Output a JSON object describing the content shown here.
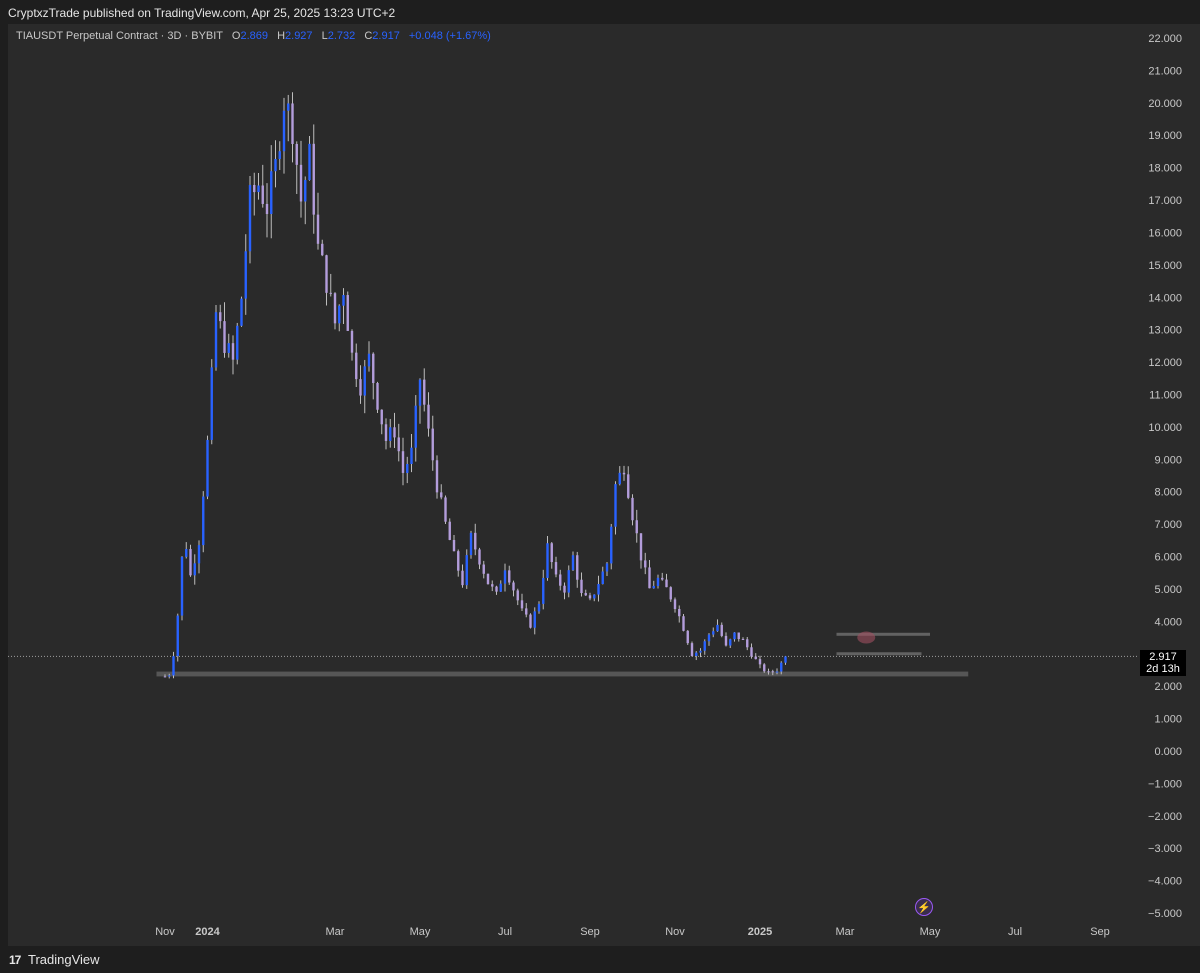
{
  "header": {
    "published_text": "CryptxzTrade published on TradingView.com, Apr 25, 2025 13:23 UTC+2"
  },
  "legend": {
    "symbol": "TIAUSDT Perpetual Contract · 3D · BYBIT",
    "open_label": "O",
    "open": "2.869",
    "high_label": "H",
    "high": "2.927",
    "low_label": "L",
    "low": "2.732",
    "close_label": "C",
    "close": "2.917",
    "change": "+0.048 (+1.67%)"
  },
  "price_tag": {
    "price": "2.917",
    "countdown": "2d 13h"
  },
  "footer": {
    "logo_mark": "17",
    "brand": "TradingView"
  },
  "colors": {
    "up": "#2962ff",
    "down": "#b39ddb",
    "wick": "#bdbdbd",
    "zone": "#7a7a7a",
    "axis_text": "#c8c8c8"
  },
  "chart_data": {
    "type": "candlestick",
    "title": "",
    "xlabel": "",
    "ylabel": "",
    "ylim": [
      -5,
      22
    ],
    "y_ticks": [
      "22.000",
      "21.000",
      "20.000",
      "19.000",
      "18.000",
      "17.000",
      "16.000",
      "15.000",
      "14.000",
      "13.000",
      "12.000",
      "11.000",
      "10.000",
      "9.000",
      "8.000",
      "7.000",
      "6.000",
      "5.000",
      "4.000",
      "3.000",
      "2.000",
      "1.000",
      "0.000",
      "−1.000",
      "−2.000",
      "−3.000",
      "−4.000",
      "−5.000"
    ],
    "x_ticks": [
      {
        "label": "Nov",
        "month": 0,
        "bold": false
      },
      {
        "label": "2024",
        "month": 1,
        "bold": true
      },
      {
        "label": "Mar",
        "month": 4,
        "bold": false
      },
      {
        "label": "May",
        "month": 6,
        "bold": false
      },
      {
        "label": "Jul",
        "month": 8,
        "bold": false
      },
      {
        "label": "Sep",
        "month": 10,
        "bold": false
      },
      {
        "label": "Nov",
        "month": 12,
        "bold": false
      },
      {
        "label": "2025",
        "month": 14,
        "bold": true
      },
      {
        "label": "Mar",
        "month": 16,
        "bold": false
      },
      {
        "label": "May",
        "month": 18,
        "bold": false
      },
      {
        "label": "Jul",
        "month": 20,
        "bold": false
      },
      {
        "label": "Sep",
        "month": 22,
        "bold": false
      }
    ],
    "last_price": 2.917,
    "price_path": [
      [
        0.0,
        2.3
      ],
      [
        0.15,
        2.4
      ],
      [
        0.3,
        4.2
      ],
      [
        0.45,
        6.8
      ],
      [
        0.6,
        5.4
      ],
      [
        0.8,
        6.5
      ],
      [
        1.0,
        9.5
      ],
      [
        1.2,
        13.5
      ],
      [
        1.4,
        12.6
      ],
      [
        1.6,
        12.0
      ],
      [
        1.8,
        14.0
      ],
      [
        2.0,
        17.0
      ],
      [
        2.2,
        17.5
      ],
      [
        2.4,
        16.8
      ],
      [
        2.6,
        18.0
      ],
      [
        2.8,
        20.1
      ],
      [
        3.0,
        19.3
      ],
      [
        3.2,
        17.0
      ],
      [
        3.4,
        18.3
      ],
      [
        3.6,
        15.5
      ],
      [
        3.8,
        14.5
      ],
      [
        4.0,
        13.2
      ],
      [
        4.2,
        14.3
      ],
      [
        4.4,
        12.2
      ],
      [
        4.6,
        11.3
      ],
      [
        4.8,
        12.1
      ],
      [
        5.0,
        10.8
      ],
      [
        5.2,
        9.6
      ],
      [
        5.4,
        9.9
      ],
      [
        5.6,
        8.6
      ],
      [
        5.8,
        9.2
      ],
      [
        6.0,
        11.5
      ],
      [
        6.2,
        9.8
      ],
      [
        6.4,
        8.2
      ],
      [
        6.6,
        7.0
      ],
      [
        6.8,
        6.0
      ],
      [
        7.0,
        5.2
      ],
      [
        7.2,
        6.6
      ],
      [
        7.4,
        5.9
      ],
      [
        7.6,
        5.2
      ],
      [
        7.8,
        4.8
      ],
      [
        8.0,
        5.7
      ],
      [
        8.2,
        5.0
      ],
      [
        8.4,
        4.3
      ],
      [
        8.6,
        3.9
      ],
      [
        8.8,
        4.6
      ],
      [
        9.0,
        6.3
      ],
      [
        9.2,
        5.3
      ],
      [
        9.4,
        5.0
      ],
      [
        9.6,
        6.0
      ],
      [
        9.8,
        4.8
      ],
      [
        10.0,
        4.6
      ],
      [
        10.2,
        5.2
      ],
      [
        10.4,
        5.8
      ],
      [
        10.6,
        8.2
      ],
      [
        10.8,
        8.8
      ],
      [
        11.0,
        7.3
      ],
      [
        11.2,
        6.0
      ],
      [
        11.4,
        5.0
      ],
      [
        11.6,
        5.3
      ],
      [
        11.8,
        5.0
      ],
      [
        12.0,
        4.5
      ],
      [
        12.2,
        3.8
      ],
      [
        12.4,
        3.0
      ],
      [
        12.6,
        3.1
      ],
      [
        12.8,
        3.6
      ],
      [
        13.0,
        3.9
      ],
      [
        13.2,
        3.2
      ],
      [
        13.4,
        3.6
      ],
      [
        13.6,
        3.4
      ],
      [
        13.8,
        3.0
      ],
      [
        14.0,
        2.6
      ],
      [
        14.2,
        2.4
      ],
      [
        14.4,
        2.5
      ],
      [
        14.6,
        2.917
      ]
    ],
    "support_zone": [
      2.3,
      2.45
    ],
    "resistance_lines": [
      3.6,
      3.0
    ],
    "highlight_marker": 3.5
  }
}
